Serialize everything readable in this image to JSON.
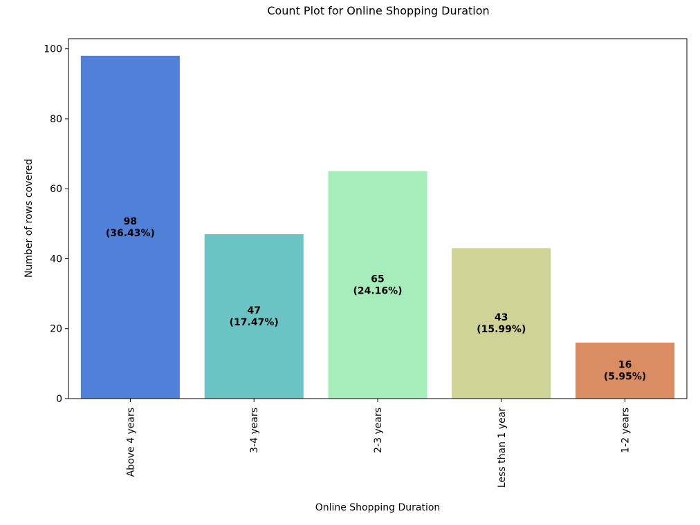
{
  "chart_data": {
    "type": "bar",
    "title": "Count Plot for Online Shopping Duration",
    "xlabel": "Online Shopping Duration",
    "ylabel": "Number of rows covered",
    "categories": [
      "Above 4 years",
      "3-4 years",
      "2-3 years",
      "Less than 1 year",
      "1-2 years"
    ],
    "values": [
      98,
      47,
      65,
      43,
      16
    ],
    "percent_labels": [
      "(36.43%)",
      "(17.47%)",
      "(24.16%)",
      "(15.99%)",
      "(5.95%)"
    ],
    "colors": [
      "#5080d8",
      "#6ac4c4",
      "#a6edbb",
      "#cfd396",
      "#da8c62"
    ],
    "ylim": [
      0,
      102.9
    ],
    "yticks": [
      0,
      20,
      40,
      60,
      80,
      100
    ],
    "grid": false,
    "legend": "none"
  }
}
